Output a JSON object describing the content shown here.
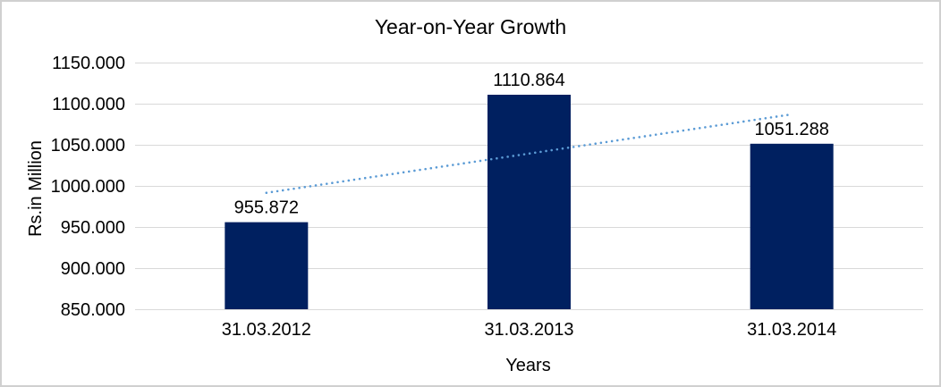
{
  "chart": {
    "title": "Year-on-Year Growth",
    "x_axis_title": "Years",
    "y_axis_title": "Rs.in Million"
  },
  "chart_data": {
    "type": "bar",
    "title": "Year-on-Year Growth",
    "xlabel": "Years",
    "ylabel": "Rs.in Million",
    "categories": [
      "31.03.2012",
      "31.03.2013",
      "31.03.2014"
    ],
    "values": [
      955.872,
      1110.864,
      1051.288
    ],
    "data_labels": [
      "955.872",
      "1110.864",
      "1051.288"
    ],
    "ylim": [
      850,
      1150
    ],
    "ytick_interval": 50,
    "ytick_labels": [
      "850.000",
      "900.000",
      "950.000",
      "1000.000",
      "1050.000",
      "1100.000",
      "1150.000"
    ],
    "grid": true,
    "legend": "none",
    "trendline": {
      "type": "linear",
      "style": "dotted",
      "fitted_endpoint_values": [
        991.633,
        1087.049
      ]
    }
  },
  "colors": {
    "bar": "#002060",
    "trendline": "#5b9bd5",
    "gridline": "#d9d9d9",
    "axis_line": "#d9d9d9",
    "text": "#000000",
    "background": "#ffffff",
    "frame_border": "#d0d0d0"
  }
}
